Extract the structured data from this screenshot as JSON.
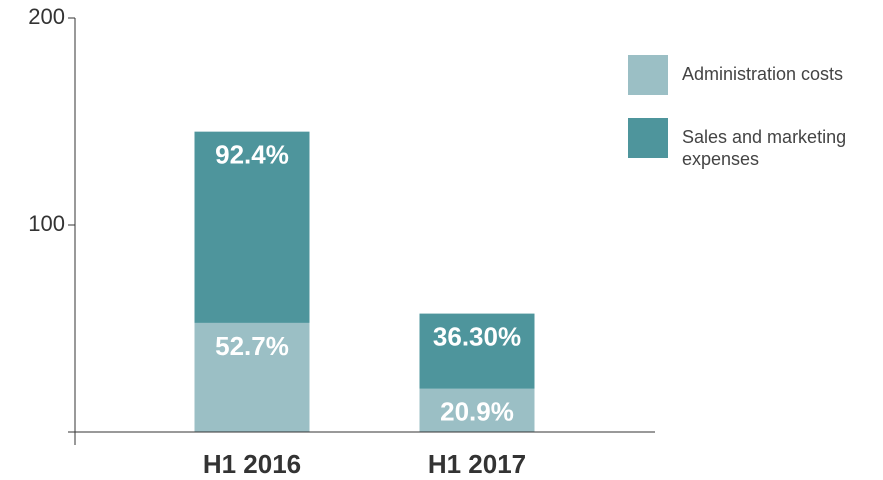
{
  "chart_data": {
    "type": "stacked-bar",
    "categories": [
      "H1 2016",
      "H1 2017"
    ],
    "series": [
      {
        "name": "Administration costs",
        "color": "#9bbfc5",
        "values": [
          52.7,
          20.9
        ],
        "value_labels": [
          "52.7%",
          "20.9%"
        ]
      },
      {
        "name": "Sales and marketing expenses",
        "color": "#4e959c",
        "values": [
          92.4,
          36.3
        ],
        "value_labels": [
          "92.4%",
          "36.30%"
        ]
      }
    ],
    "ylim": [
      0,
      200
    ],
    "yticks": [
      100,
      200
    ],
    "legend": "right"
  }
}
